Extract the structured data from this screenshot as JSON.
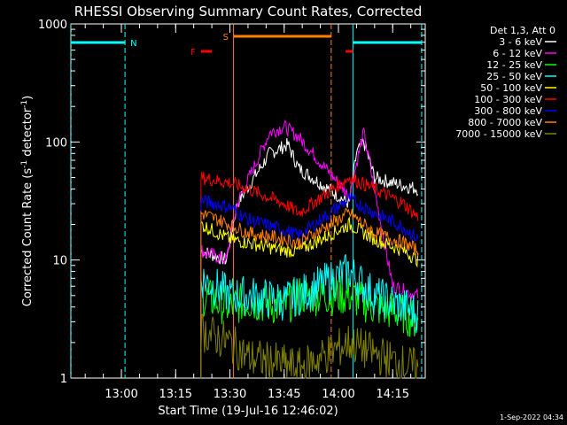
{
  "chart_data": {
    "type": "line",
    "title": "RHESSI Observing Summary Count Rates, Corrected",
    "xlabel": "Start Time (19-Jul-16 12:46:02)",
    "ylabel_main": "Corrected Count Rate (s",
    "ylabel_sup1": "-1",
    "ylabel_mid": " detector",
    "ylabel_sup2": "-1",
    "ylabel_end": ")",
    "yscale": "log",
    "ylim": [
      1,
      1000
    ],
    "xlim": [
      "12:46:02",
      "14:24"
    ],
    "x_ticks": [
      "13:00",
      "13:15",
      "13:30",
      "13:45",
      "14:00",
      "14:15"
    ],
    "y_ticks": [
      "1",
      "10",
      "100",
      "1000"
    ],
    "legend_title": "Det 1,3, Att 0",
    "series": [
      {
        "name": "3 - 6 keV",
        "color": "#ffffff",
        "values": [
          [
            13.22,
            12
          ],
          [
            13.29,
            10
          ],
          [
            13.32,
            30
          ],
          [
            13.41,
            80
          ],
          [
            13.46,
            95
          ],
          [
            13.49,
            60
          ],
          [
            14.03,
            30
          ],
          [
            14.05,
            80
          ],
          [
            14.07,
            100
          ],
          [
            14.1,
            50
          ],
          [
            14.15,
            45
          ],
          [
            14.22,
            40
          ]
        ]
      },
      {
        "name": "6 - 12 keV",
        "color": "#ff00ff",
        "values": [
          [
            13.22,
            12
          ],
          [
            13.29,
            10
          ],
          [
            13.32,
            30
          ],
          [
            13.41,
            120
          ],
          [
            13.45,
            135
          ],
          [
            13.49,
            110
          ],
          [
            14.03,
            35
          ],
          [
            14.06,
            90
          ],
          [
            14.07,
            120
          ],
          [
            14.15,
            6
          ],
          [
            14.22,
            5
          ]
        ]
      },
      {
        "name": "12 - 25 keV",
        "color": "#00ff00",
        "values": [
          [
            13.22,
            5
          ],
          [
            13.3,
            4
          ],
          [
            13.35,
            4.5
          ],
          [
            13.45,
            4
          ],
          [
            13.49,
            5
          ],
          [
            14.03,
            5
          ],
          [
            14.1,
            4
          ],
          [
            14.18,
            3.5
          ],
          [
            14.22,
            3
          ]
        ]
      },
      {
        "name": "25 - 50 keV",
        "color": "#00ffff",
        "values": [
          [
            13.22,
            7
          ],
          [
            13.3,
            5
          ],
          [
            13.35,
            5
          ],
          [
            13.45,
            4.5
          ],
          [
            13.49,
            5
          ],
          [
            14.03,
            8
          ],
          [
            14.1,
            5
          ],
          [
            14.18,
            4
          ],
          [
            14.22,
            3.5
          ]
        ]
      },
      {
        "name": "50 - 100 keV",
        "color": "#ffff00",
        "values": [
          [
            13.22,
            20
          ],
          [
            13.3,
            15
          ],
          [
            13.35,
            14
          ],
          [
            13.45,
            12
          ],
          [
            13.49,
            12
          ],
          [
            14.03,
            20
          ],
          [
            14.1,
            15
          ],
          [
            14.18,
            12
          ],
          [
            14.22,
            10
          ]
        ]
      },
      {
        "name": "100 - 300 keV",
        "color": "#ff0000",
        "values": [
          [
            13.22,
            50
          ],
          [
            13.3,
            45
          ],
          [
            13.35,
            40
          ],
          [
            13.45,
            30
          ],
          [
            13.49,
            25
          ],
          [
            14.03,
            50
          ],
          [
            14.1,
            40
          ],
          [
            14.18,
            30
          ],
          [
            14.22,
            23
          ]
        ]
      },
      {
        "name": "300 - 800 keV",
        "color": "#0000ff",
        "values": [
          [
            13.22,
            32
          ],
          [
            13.3,
            28
          ],
          [
            13.35,
            22
          ],
          [
            13.45,
            18
          ],
          [
            13.49,
            16
          ],
          [
            14.03,
            33
          ],
          [
            14.1,
            25
          ],
          [
            14.18,
            19
          ],
          [
            14.22,
            15
          ]
        ]
      },
      {
        "name": "800 - 7000 keV",
        "color": "#ff8000",
        "values": [
          [
            13.22,
            25
          ],
          [
            13.3,
            20
          ],
          [
            13.35,
            17
          ],
          [
            13.45,
            15
          ],
          [
            13.49,
            14
          ],
          [
            14.03,
            25
          ],
          [
            14.1,
            17
          ],
          [
            14.18,
            14
          ],
          [
            14.22,
            12
          ]
        ]
      },
      {
        "name": "7000 - 15000 keV",
        "color": "#808000",
        "values": [
          [
            13.22,
            2.5
          ],
          [
            13.3,
            2
          ],
          [
            13.35,
            1.5
          ],
          [
            13.45,
            1.3
          ],
          [
            13.49,
            1.2
          ],
          [
            14.03,
            2
          ],
          [
            14.1,
            1.6
          ],
          [
            14.18,
            1.3
          ],
          [
            14.22,
            1.2
          ]
        ]
      }
    ],
    "flags": [
      {
        "label": "N",
        "color": "#00ffff",
        "segments": [
          [
            "12:46",
            "13:01"
          ],
          [
            "14:04",
            "14:23"
          ]
        ]
      },
      {
        "label": "S",
        "color": "#ff8000",
        "segments": [
          [
            "13:31",
            "13:58"
          ]
        ]
      },
      {
        "label": "F",
        "color": "#ff0000",
        "segments": [
          [
            "13:22",
            "13:25"
          ],
          [
            "14:02",
            "14:04"
          ]
        ]
      }
    ],
    "timestamp": "1-Sep-2022 04:34"
  }
}
